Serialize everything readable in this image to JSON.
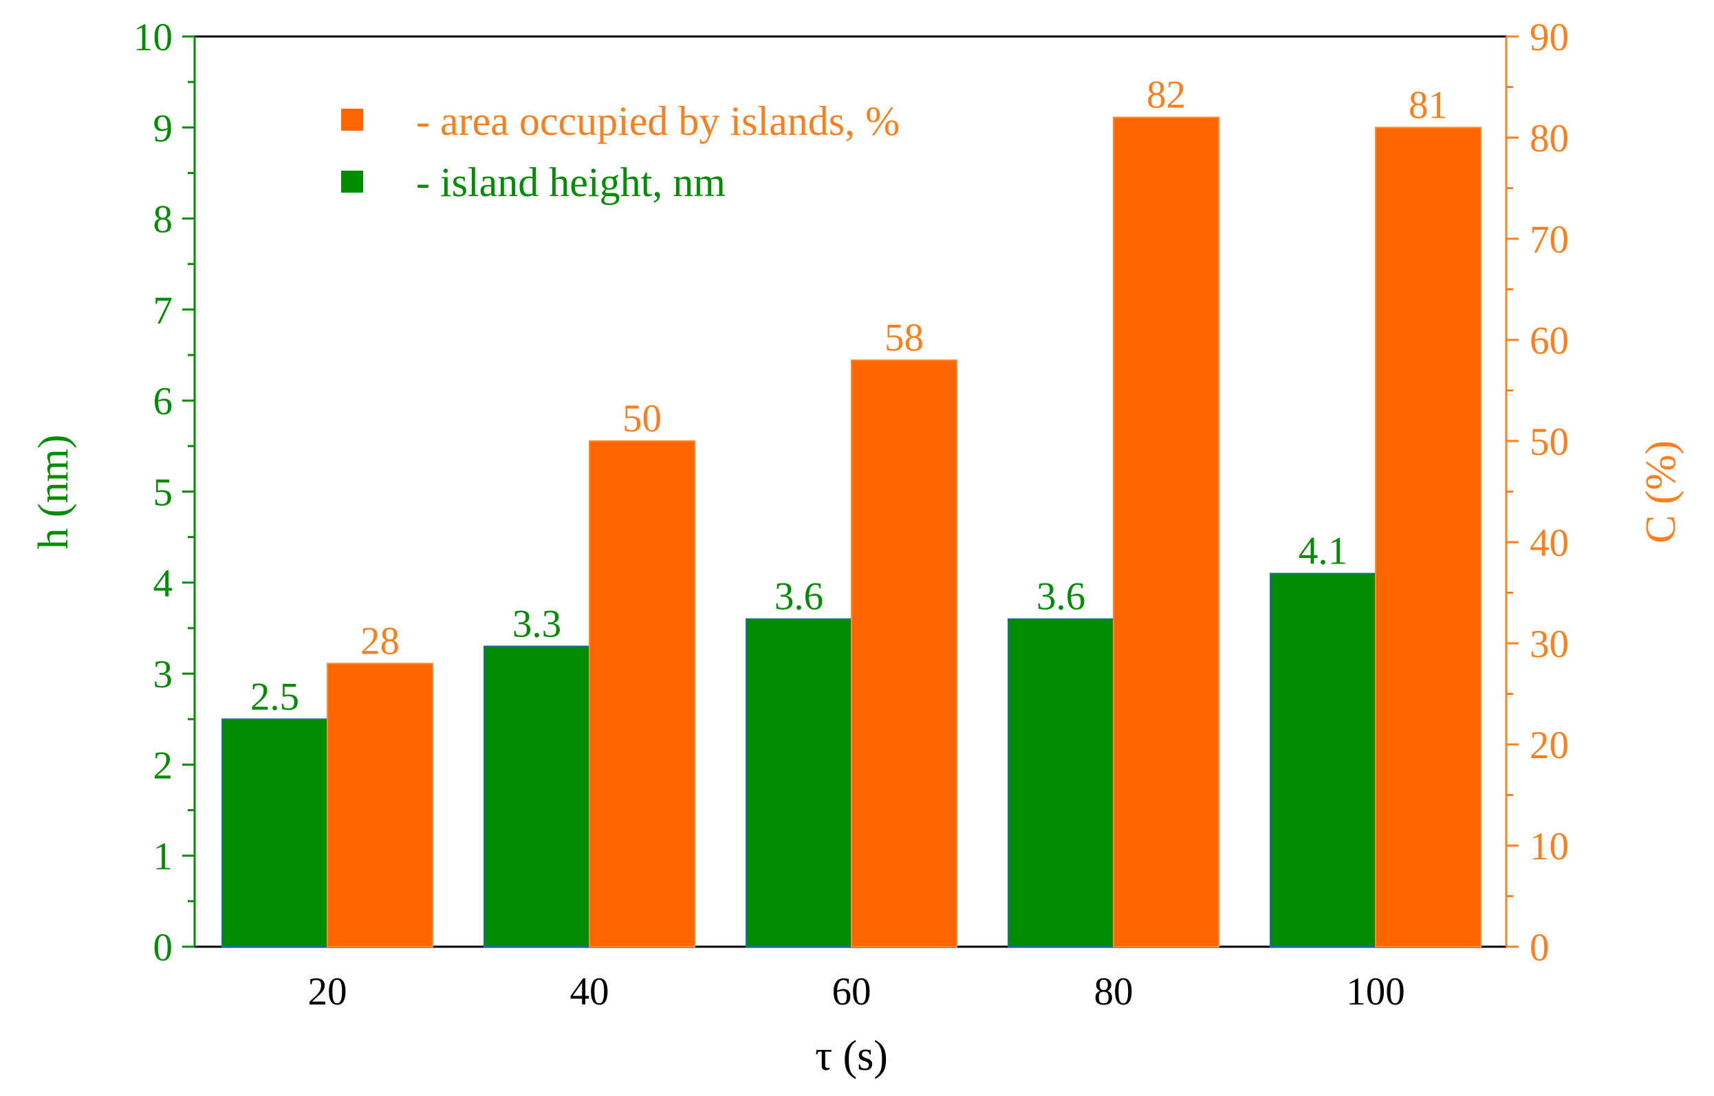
{
  "chart_data": {
    "type": "bar",
    "x": [
      20,
      40,
      60,
      80,
      100
    ],
    "xlabel": "τ (s)",
    "series": [
      {
        "name": "- island height, nm",
        "axis": "left",
        "color": "#008c00",
        "values": [
          2.5,
          3.3,
          3.6,
          3.6,
          4.1
        ],
        "labels": [
          "2.5",
          "3.3",
          "3.6",
          "3.6",
          "4.1"
        ]
      },
      {
        "name": "- area occupied by islands, %",
        "axis": "right",
        "color": "#ff6600",
        "values": [
          28,
          50,
          58,
          82,
          81
        ],
        "labels": [
          "28",
          "50",
          "58",
          "82",
          "81"
        ]
      }
    ],
    "left_axis": {
      "label": "h (nm)",
      "color": "#008c00",
      "ylim": [
        0,
        10
      ],
      "ticks": [
        0,
        1,
        2,
        3,
        4,
        5,
        6,
        7,
        8,
        9,
        10
      ]
    },
    "right_axis": {
      "label": "C (%)",
      "color": "#ff7f1e",
      "ylim": [
        0,
        90
      ],
      "ticks": [
        0,
        10,
        20,
        30,
        40,
        50,
        60,
        70,
        80,
        90
      ]
    },
    "legend_position": "top-left",
    "grid": false
  }
}
